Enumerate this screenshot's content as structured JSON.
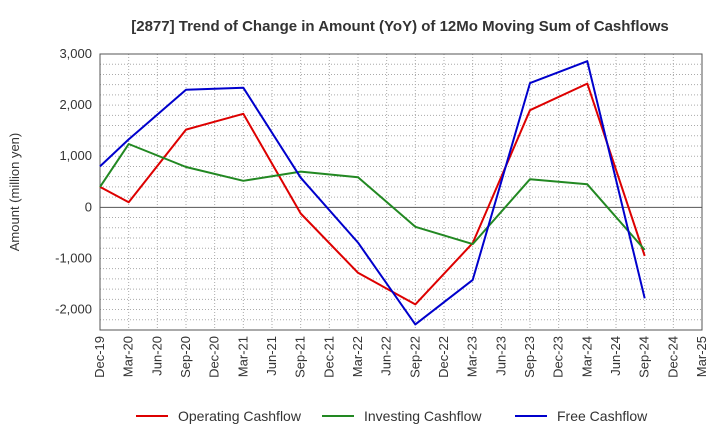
{
  "chart_data": {
    "type": "line",
    "title": "[2877]  Trend of Change in Amount (YoY) of 12Mo Moving Sum of Cashflows",
    "xlabel": "",
    "ylabel": "Amount (million yen)",
    "ylim": [
      -2400,
      3000
    ],
    "yticks": [
      3000,
      2000,
      1000,
      0,
      -1000,
      -2000
    ],
    "ytick_labels": [
      "3,000",
      "2,000",
      "1,000",
      "0",
      "-1,000",
      "-2,000"
    ],
    "grid": true,
    "legend_position": "bottom",
    "categories": [
      "Dec-19",
      "Mar-20",
      "Jun-20",
      "Sep-20",
      "Dec-20",
      "Mar-21",
      "Jun-21",
      "Sep-21",
      "Dec-21",
      "Mar-22",
      "Jun-22",
      "Sep-22",
      "Dec-22",
      "Mar-23",
      "Jun-23",
      "Sep-23",
      "Dec-23",
      "Mar-24",
      "Jun-24",
      "Sep-24",
      "Dec-24",
      "Mar-25"
    ],
    "series": [
      {
        "name": "Operating Cashflow",
        "color": "#dd0000",
        "values": [
          400,
          100,
          null,
          1520,
          null,
          1830,
          null,
          -120,
          null,
          -1280,
          null,
          -1900,
          null,
          -700,
          null,
          1900,
          null,
          2420,
          null,
          -950,
          null,
          null
        ]
      },
      {
        "name": "Investing Cashflow",
        "color": "#228822",
        "values": [
          400,
          1240,
          null,
          790,
          null,
          520,
          null,
          700,
          null,
          590,
          null,
          -380,
          null,
          -720,
          null,
          550,
          null,
          450,
          null,
          -830,
          null,
          null
        ]
      },
      {
        "name": "Free Cashflow",
        "color": "#0000cc",
        "values": [
          800,
          1330,
          null,
          2300,
          null,
          2340,
          null,
          580,
          null,
          -690,
          null,
          -2290,
          null,
          -1420,
          null,
          2430,
          null,
          2860,
          null,
          -1780,
          null,
          null
        ]
      }
    ]
  }
}
